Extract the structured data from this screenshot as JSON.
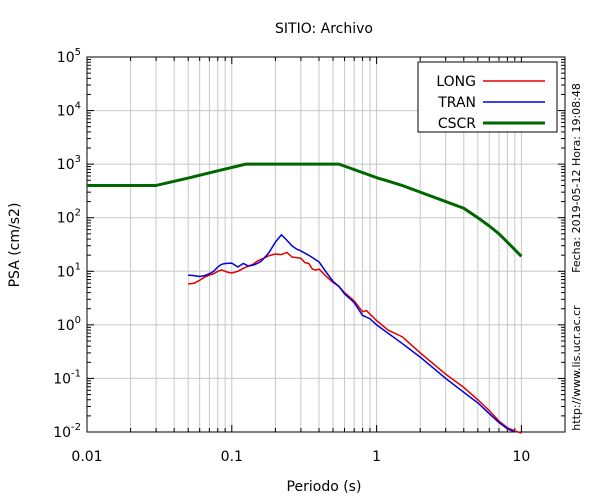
{
  "chart_data": {
    "type": "line",
    "title": "SITIO: Archivo",
    "xlabel": "Periodo (s)",
    "ylabel": "PSA (cm/s2)",
    "x_scale": "log",
    "y_scale": "log",
    "xlim": [
      0.01,
      20
    ],
    "ylim": [
      0.01,
      100000
    ],
    "grid": true,
    "legend_position": "top-right",
    "x_tick_labels": [
      "0.01",
      "0.1",
      "1",
      "10"
    ],
    "y_tick_labels": [
      {
        "base": "10",
        "exp": "-2"
      },
      {
        "base": "10",
        "exp": "-1"
      },
      {
        "base": "10",
        "exp": "0"
      },
      {
        "base": "10",
        "exp": "1"
      },
      {
        "base": "10",
        "exp": "2"
      },
      {
        "base": "10",
        "exp": "3"
      },
      {
        "base": "10",
        "exp": "4"
      },
      {
        "base": "10",
        "exp": "5"
      }
    ],
    "series": [
      {
        "name": "LONG",
        "color": "#e00000",
        "points": [
          [
            0.05,
            5.8
          ],
          [
            0.055,
            6.0
          ],
          [
            0.06,
            6.8
          ],
          [
            0.065,
            7.8
          ],
          [
            0.07,
            8.5
          ],
          [
            0.075,
            9.0
          ],
          [
            0.08,
            10.0
          ],
          [
            0.085,
            10.6
          ],
          [
            0.09,
            10.0
          ],
          [
            0.095,
            9.5
          ],
          [
            0.1,
            9.3
          ],
          [
            0.11,
            10.0
          ],
          [
            0.12,
            11.3
          ],
          [
            0.13,
            12.5
          ],
          [
            0.14,
            13.5
          ],
          [
            0.15,
            15.5
          ],
          [
            0.16,
            16.8
          ],
          [
            0.17,
            18.0
          ],
          [
            0.18,
            19.5
          ],
          [
            0.2,
            21.0
          ],
          [
            0.22,
            20.5
          ],
          [
            0.24,
            22.5
          ],
          [
            0.26,
            18.5
          ],
          [
            0.28,
            18.0
          ],
          [
            0.3,
            17.5
          ],
          [
            0.32,
            14.5
          ],
          [
            0.34,
            14.0
          ],
          [
            0.36,
            11.0
          ],
          [
            0.38,
            10.5
          ],
          [
            0.4,
            11.0
          ],
          [
            0.45,
            8.0
          ],
          [
            0.5,
            6.2
          ],
          [
            0.55,
            5.2
          ],
          [
            0.6,
            4.0
          ],
          [
            0.7,
            2.8
          ],
          [
            0.8,
            1.75
          ],
          [
            0.85,
            1.85
          ],
          [
            1.0,
            1.2
          ],
          [
            1.2,
            0.8
          ],
          [
            1.5,
            0.6
          ],
          [
            2.0,
            0.3
          ],
          [
            3.0,
            0.12
          ],
          [
            4.0,
            0.068
          ],
          [
            5.0,
            0.04
          ],
          [
            6.0,
            0.025
          ],
          [
            7.0,
            0.016
          ],
          [
            8.0,
            0.012
          ],
          [
            9.0,
            0.0105
          ],
          [
            10.0,
            0.0095
          ]
        ]
      },
      {
        "name": "TRAN",
        "color": "#0000dd",
        "points": [
          [
            0.05,
            8.5
          ],
          [
            0.055,
            8.3
          ],
          [
            0.06,
            8.0
          ],
          [
            0.065,
            8.3
          ],
          [
            0.07,
            9.0
          ],
          [
            0.075,
            10.0
          ],
          [
            0.08,
            12.0
          ],
          [
            0.085,
            13.5
          ],
          [
            0.09,
            14.0
          ],
          [
            0.1,
            14.2
          ],
          [
            0.11,
            12.0
          ],
          [
            0.12,
            14.0
          ],
          [
            0.13,
            12.5
          ],
          [
            0.14,
            13.0
          ],
          [
            0.15,
            14.0
          ],
          [
            0.16,
            15.5
          ],
          [
            0.18,
            22.0
          ],
          [
            0.2,
            35.0
          ],
          [
            0.22,
            48.0
          ],
          [
            0.24,
            38.0
          ],
          [
            0.26,
            30.0
          ],
          [
            0.28,
            26.0
          ],
          [
            0.3,
            24.0
          ],
          [
            0.35,
            19.0
          ],
          [
            0.4,
            15.0
          ],
          [
            0.45,
            9.5
          ],
          [
            0.5,
            6.5
          ],
          [
            0.55,
            5.2
          ],
          [
            0.6,
            3.8
          ],
          [
            0.7,
            2.6
          ],
          [
            0.8,
            1.5
          ],
          [
            0.9,
            1.3
          ],
          [
            1.0,
            1.0
          ],
          [
            1.5,
            0.45
          ],
          [
            2.0,
            0.25
          ],
          [
            3.0,
            0.1
          ],
          [
            4.0,
            0.055
          ],
          [
            5.0,
            0.035
          ],
          [
            6.0,
            0.022
          ],
          [
            7.0,
            0.015
          ],
          [
            8.0,
            0.0115
          ],
          [
            9.0,
            0.01
          ]
        ]
      },
      {
        "name": "CSCR",
        "color": "#006600",
        "points": [
          [
            0.01,
            400
          ],
          [
            0.03,
            400
          ],
          [
            0.05,
            550
          ],
          [
            0.08,
            750
          ],
          [
            0.125,
            1000
          ],
          [
            0.2,
            1000
          ],
          [
            0.3,
            1000
          ],
          [
            0.4,
            1000
          ],
          [
            0.55,
            1000
          ],
          [
            1.0,
            560
          ],
          [
            1.5,
            400
          ],
          [
            2.0,
            300
          ],
          [
            3.0,
            200
          ],
          [
            4.0,
            150
          ],
          [
            5.0,
            100
          ],
          [
            6.0,
            70
          ],
          [
            7.0,
            50
          ],
          [
            8.0,
            35
          ],
          [
            10.0,
            19
          ]
        ]
      }
    ],
    "side_text_right": "Fecha: 2019-05-12  Hora: 19:08:48",
    "side_text_bottom": "http://www.lis.ucr.ac.cr"
  }
}
